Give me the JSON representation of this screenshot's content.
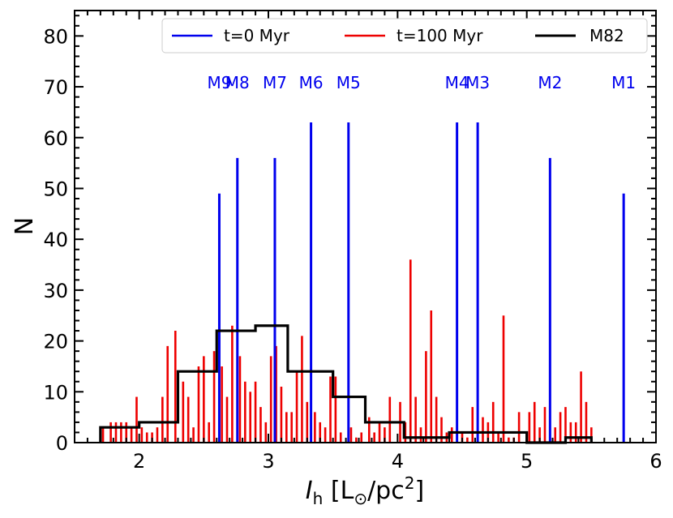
{
  "chart_data": {
    "type": "bar",
    "title": "",
    "xlabel": {
      "prefix": "I",
      "sub": "h",
      "open": " [L",
      "sun": "⊙",
      "mid": "/pc",
      "sup": "2",
      "close": "]"
    },
    "ylabel": "N",
    "xlim": [
      1.5,
      6.0
    ],
    "ylim": [
      0,
      85
    ],
    "xticks": [
      2,
      3,
      4,
      5,
      6
    ],
    "yticks": [
      0,
      10,
      20,
      30,
      40,
      50,
      60,
      70,
      80
    ],
    "colors": {
      "initial": "#0000ee",
      "evolved": "#ee0000",
      "observed": "#000000"
    },
    "legend": {
      "position": "top-right",
      "entries": [
        {
          "name": "t=0 Myr",
          "color": "#0000ee"
        },
        {
          "name": "t=100 Myr",
          "color": "#ee0000"
        },
        {
          "name": "M82",
          "color": "#000000"
        }
      ]
    },
    "series": [
      {
        "name": "t=0 Myr",
        "kind": "lines",
        "x": [
          2.62,
          2.76,
          3.05,
          3.33,
          3.62,
          4.46,
          4.62,
          5.18,
          5.75
        ],
        "values": [
          49,
          56,
          56,
          63,
          63,
          63,
          63,
          56,
          49
        ],
        "labels": [
          "M9",
          "M8",
          "M7",
          "M6",
          "M5",
          "M4",
          "M3",
          "M2",
          "M1"
        ],
        "label_y": 71
      },
      {
        "name": "t=100 Myr",
        "kind": "lines",
        "x": [
          1.72,
          1.78,
          1.82,
          1.86,
          1.9,
          1.94,
          1.98,
          2.02,
          2.06,
          2.1,
          2.14,
          2.18,
          2.22,
          2.28,
          2.34,
          2.38,
          2.42,
          2.46,
          2.5,
          2.54,
          2.58,
          2.64,
          2.68,
          2.72,
          2.78,
          2.82,
          2.86,
          2.9,
          2.94,
          2.98,
          3.02,
          3.06,
          3.1,
          3.14,
          3.18,
          3.22,
          3.26,
          3.3,
          3.36,
          3.4,
          3.44,
          3.48,
          3.52,
          3.56,
          3.64,
          3.68,
          3.72,
          3.78,
          3.82,
          3.86,
          3.9,
          3.94,
          4.02,
          4.06,
          4.1,
          4.14,
          4.18,
          4.22,
          4.26,
          4.3,
          4.34,
          4.38,
          4.42,
          4.5,
          4.54,
          4.58,
          4.66,
          4.7,
          4.74,
          4.78,
          4.82,
          4.86,
          4.9,
          4.94,
          5.02,
          5.06,
          5.1,
          5.14,
          5.22,
          5.26,
          5.3,
          5.34,
          5.38,
          5.42,
          5.46,
          5.5
        ],
        "values": [
          3,
          4,
          4,
          4,
          4,
          3,
          9,
          3,
          2,
          2,
          3,
          9,
          19,
          22,
          12,
          9,
          3,
          15,
          17,
          4,
          18,
          15,
          9,
          23,
          17,
          12,
          10,
          12,
          7,
          4,
          17,
          19,
          11,
          6,
          6,
          14,
          21,
          8,
          6,
          4,
          3,
          13,
          13,
          2,
          3,
          1,
          2,
          5,
          2,
          4,
          3,
          9,
          8,
          4,
          36,
          9,
          3,
          18,
          26,
          9,
          5,
          2,
          3,
          2,
          1,
          7,
          5,
          4,
          8,
          2,
          25,
          1,
          1,
          6,
          6,
          8,
          3,
          7,
          3,
          6,
          7,
          4,
          4,
          14,
          8,
          3
        ]
      },
      {
        "name": "M82",
        "kind": "step",
        "bin_edges": [
          1.7,
          2.0,
          2.3,
          2.6,
          2.9,
          3.15,
          3.5,
          3.75,
          4.05,
          4.4,
          4.75,
          5.0,
          5.3,
          5.5
        ],
        "values": [
          3,
          4,
          14,
          22,
          23,
          14,
          9,
          4,
          1,
          2,
          2,
          0,
          1
        ]
      }
    ]
  }
}
